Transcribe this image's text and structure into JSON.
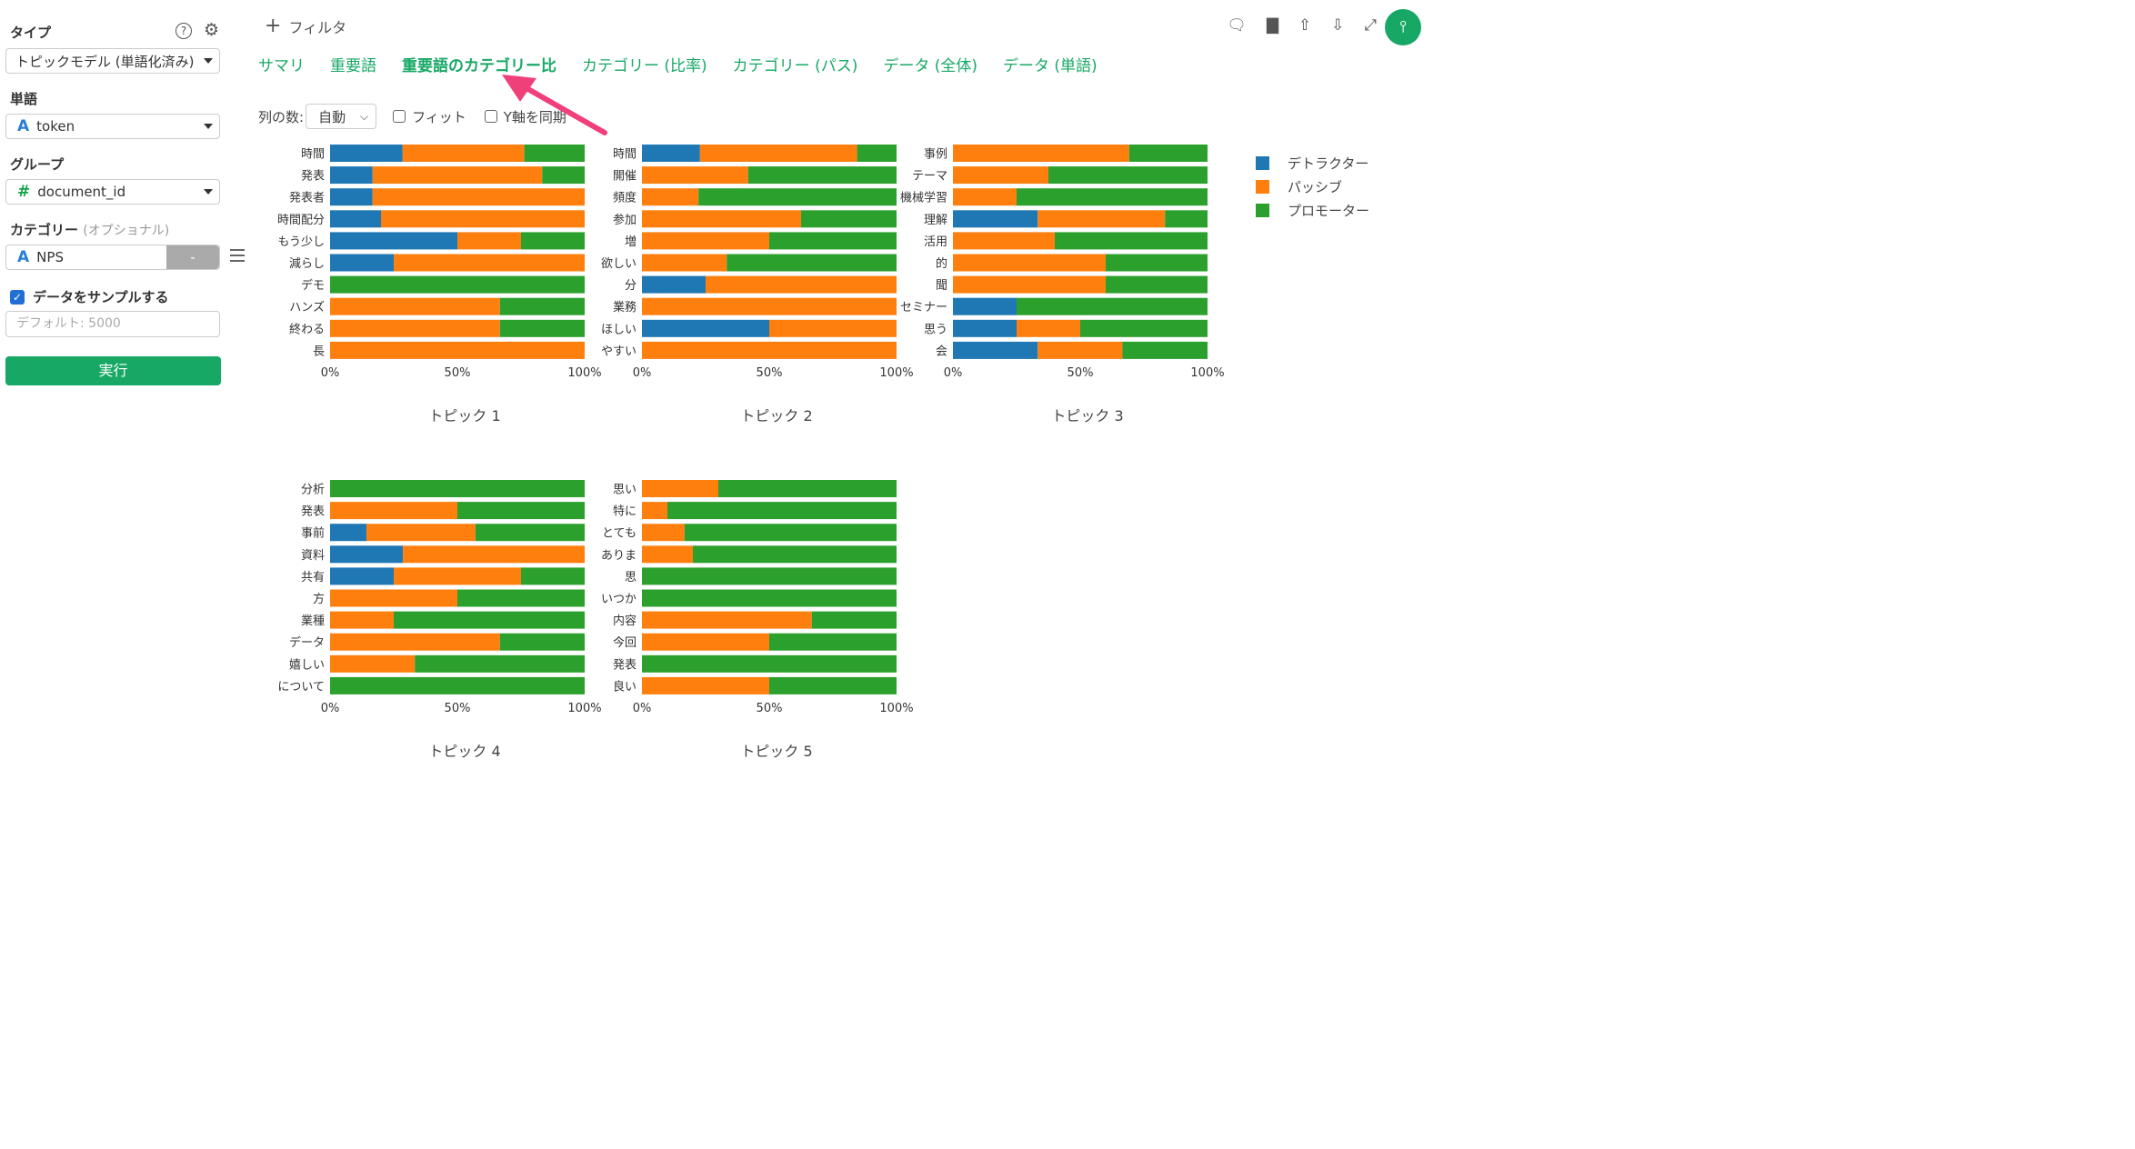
{
  "sidebar": {
    "type_label": "タイプ",
    "type_value": "トピックモデル (単語化済み)",
    "word_label": "単語",
    "word_value": "token",
    "group_label": "グループ",
    "group_value": "document_id",
    "category_label": "カテゴリー",
    "category_optional": "(オプショナル)",
    "category_value": "NPS",
    "category_remove": "-",
    "sample_label": "データをサンプルする",
    "sample_checked": true,
    "sample_placeholder": "デフォルト: 5000",
    "run_label": "実行",
    "help_icon": "?"
  },
  "topbar": {
    "filter_label": "フィルタ",
    "tabs": [
      "サマリ",
      "重要語",
      "重要語のカテゴリー比",
      "カテゴリー (比率)",
      "カテゴリー (パス)",
      "データ (全体)",
      "データ (単語)"
    ],
    "active_tab": 2
  },
  "options": {
    "columns_label": "列の数:",
    "columns_value": "自動",
    "fit_label": "フィット",
    "sync_y_label": "Y軸を同期"
  },
  "colors": {
    "detractor": "#1f77b4",
    "passive": "#ff7f0e",
    "promoter": "#2ca02c",
    "accent": "#17a865",
    "arrow": "#f0407a"
  },
  "chart_data": {
    "type": "bar",
    "orientation": "horizontal",
    "stacked": "percent",
    "series_names": [
      "デトラクター",
      "パッシブ",
      "プロモーター"
    ],
    "xticks": [
      "0%",
      "50%",
      "100%"
    ],
    "legend_position": "right",
    "panels": [
      {
        "title": "トピック 1",
        "categories": [
          "時間",
          "発表",
          "発表者",
          "時間配分",
          "もう少し",
          "減らし",
          "デモ",
          "ハンズ",
          "終わる",
          "長"
        ],
        "values": [
          [
            28.5,
            47.8,
            23.7
          ],
          [
            16.7,
            66.6,
            16.7
          ],
          [
            16.7,
            83.3,
            0
          ],
          [
            20,
            80,
            0
          ],
          [
            50,
            25,
            25
          ],
          [
            25,
            75,
            0
          ],
          [
            0,
            0,
            100
          ],
          [
            0,
            66.7,
            33.3
          ],
          [
            0,
            66.7,
            33.3
          ],
          [
            0,
            100,
            0
          ]
        ]
      },
      {
        "title": "トピック 2",
        "categories": [
          "時間",
          "開催",
          "頻度",
          "参加",
          "増",
          "欲しい",
          "分",
          "業務",
          "ほしい",
          "やすい"
        ],
        "values": [
          [
            22.8,
            61.7,
            15.5
          ],
          [
            0,
            41.7,
            58.3
          ],
          [
            0,
            22.2,
            77.8
          ],
          [
            0,
            62.5,
            37.5
          ],
          [
            0,
            50,
            50
          ],
          [
            0,
            33.3,
            66.7
          ],
          [
            25,
            75,
            0
          ],
          [
            0,
            100,
            0
          ],
          [
            50,
            50,
            0
          ],
          [
            0,
            100,
            0
          ]
        ]
      },
      {
        "title": "トピック 3",
        "categories": [
          "事例",
          "テーマ",
          "機械学習",
          "理解",
          "活用",
          "的",
          "聞",
          "セミナー",
          "思う",
          "会"
        ],
        "values": [
          [
            0,
            69.2,
            30.8
          ],
          [
            0,
            37.5,
            62.5
          ],
          [
            0,
            25,
            75
          ],
          [
            33.3,
            50,
            16.7
          ],
          [
            0,
            40,
            60
          ],
          [
            0,
            60,
            40
          ],
          [
            0,
            60,
            40
          ],
          [
            25,
            0,
            75
          ],
          [
            25,
            25,
            50
          ],
          [
            33.3,
            33.3,
            33.4
          ]
        ]
      },
      {
        "title": "トピック 4",
        "categories": [
          "分析",
          "発表",
          "事前",
          "資料",
          "共有",
          "方",
          "業種",
          "データ",
          "嬉しい",
          "について"
        ],
        "values": [
          [
            0,
            0,
            100
          ],
          [
            0,
            50,
            50
          ],
          [
            14.3,
            42.8,
            42.9
          ],
          [
            28.6,
            71.4,
            0
          ],
          [
            25,
            50,
            25
          ],
          [
            0,
            50,
            50
          ],
          [
            0,
            25,
            75
          ],
          [
            0,
            66.7,
            33.3
          ],
          [
            0,
            33.3,
            66.7
          ],
          [
            0,
            0,
            100
          ]
        ]
      },
      {
        "title": "トピック 5",
        "categories": [
          "思い",
          "特に",
          "とても",
          "ありま",
          "思",
          "いつか",
          "内容",
          "今回",
          "発表",
          "良い"
        ],
        "values": [
          [
            0,
            30,
            70
          ],
          [
            0,
            10,
            90
          ],
          [
            0,
            16.7,
            83.3
          ],
          [
            0,
            20,
            80
          ],
          [
            0,
            0,
            100
          ],
          [
            0,
            0,
            100
          ],
          [
            0,
            66.7,
            33.3
          ],
          [
            0,
            50,
            50
          ],
          [
            0,
            0,
            100
          ],
          [
            0,
            50,
            50
          ]
        ]
      }
    ]
  }
}
